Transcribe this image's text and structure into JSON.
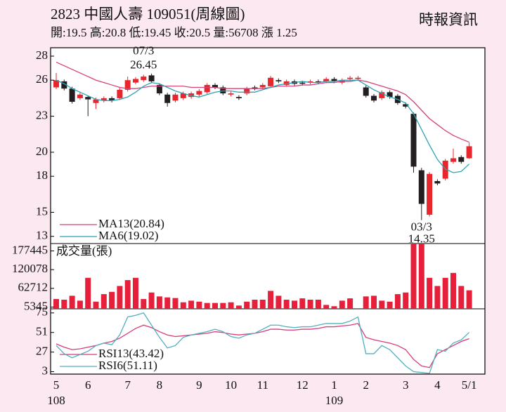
{
  "header": {
    "title": "2823 中國人壽 109051(周線圖)",
    "source": "時報資訊",
    "quote": "開:19.5 高:20.8 低:19.45 收:20.5 量:56708 漲 1.25"
  },
  "chart_data": [
    {
      "type": "candlestick",
      "categories": [
        "5",
        null,
        null,
        null,
        "6",
        null,
        null,
        null,
        null,
        "7",
        null,
        null,
        null,
        "8",
        null,
        null,
        null,
        null,
        "9",
        null,
        null,
        null,
        "10",
        null,
        null,
        null,
        "11",
        null,
        null,
        null,
        null,
        "12",
        null,
        null,
        null,
        "1",
        null,
        null,
        null,
        "2",
        null,
        null,
        null,
        null,
        "3",
        null,
        null,
        null,
        "4",
        null,
        null,
        null,
        "5/1"
      ],
      "category_years": [
        "108",
        null,
        null,
        null,
        null,
        null,
        null,
        null,
        null,
        null,
        null,
        null,
        null,
        null,
        null,
        null,
        null,
        null,
        null,
        null,
        null,
        null,
        null,
        null,
        null,
        null,
        null,
        null,
        null,
        null,
        null,
        null,
        null,
        null,
        null,
        "109",
        null,
        null,
        null,
        null,
        null,
        null,
        null,
        null,
        null,
        null,
        null,
        null,
        null,
        null,
        null,
        null,
        null
      ],
      "open": [
        25.4,
        25.9,
        25.3,
        24.5,
        24.6,
        24.1,
        24.3,
        24.5,
        24.5,
        25.2,
        25.8,
        26.0,
        26.4,
        25.6,
        24.8,
        24.3,
        24.5,
        24.6,
        24.8,
        25.0,
        25.6,
        25.4,
        24.8,
        24.6,
        24.9,
        25.4,
        25.4,
        25.5,
        26.0,
        25.6,
        25.9,
        25.8,
        25.8,
        25.9,
        25.9,
        26.1,
        25.8,
        26.1,
        26.1,
        25.4,
        24.7,
        24.5,
        25.0,
        24.7,
        24.0,
        23.2,
        18.5,
        14.8,
        17.6,
        17.8,
        19.2,
        19.6,
        19.5
      ],
      "high": [
        26.6,
        26.05,
        25.45,
        24.95,
        24.7,
        24.55,
        24.65,
        24.65,
        25.35,
        26.3,
        26.25,
        26.45,
        26.55,
        25.75,
        24.95,
        24.95,
        25.05,
        25.05,
        25.25,
        25.75,
        25.75,
        25.55,
        25.05,
        24.75,
        25.45,
        25.55,
        25.75,
        26.35,
        26.15,
        26.05,
        26.05,
        25.95,
        26.05,
        26.05,
        26.25,
        26.25,
        26.15,
        26.35,
        26.35,
        25.55,
        24.85,
        25.15,
        25.15,
        24.85,
        24.15,
        23.3,
        18.7,
        18.35,
        17.75,
        19.45,
        20.3,
        19.75,
        20.8
      ],
      "low": [
        25.25,
        25.15,
        24.05,
        24.35,
        23.0,
        23.6,
        24.15,
        24.15,
        24.35,
        25.05,
        25.65,
        25.85,
        25.75,
        24.75,
        23.8,
        24.15,
        24.35,
        24.45,
        24.65,
        24.85,
        25.25,
        24.75,
        24.65,
        24.35,
        24.75,
        25.15,
        25.25,
        25.35,
        25.75,
        25.45,
        25.55,
        25.55,
        25.65,
        25.65,
        25.75,
        25.75,
        25.65,
        25.95,
        25.95,
        24.55,
        24.15,
        24.35,
        24.45,
        23.95,
        23.65,
        18.3,
        14.35,
        14.65,
        17.25,
        17.65,
        19.05,
        19.05,
        19.45
      ],
      "close": [
        26.0,
        25.3,
        24.2,
        24.8,
        24.4,
        24.4,
        24.5,
        24.3,
        25.2,
        26.0,
        26.1,
        26.3,
        25.9,
        24.9,
        24.1,
        24.8,
        24.9,
        24.9,
        25.1,
        25.6,
        25.4,
        24.9,
        24.9,
        24.5,
        25.3,
        25.3,
        25.6,
        26.2,
        25.9,
        25.9,
        25.7,
        25.7,
        25.9,
        25.8,
        26.1,
        25.9,
        26.0,
        26.2,
        26.2,
        24.7,
        24.3,
        25.0,
        24.6,
        24.1,
        23.8,
        18.8,
        15.7,
        18.2,
        17.4,
        19.3,
        19.5,
        19.2,
        20.5
      ],
      "up_color": "#e8262d",
      "down_color": "#231f20",
      "series": [
        {
          "name": "MA13(20.84)",
          "color": "#d6417a",
          "values": [
            27.5,
            27.2,
            26.9,
            26.6,
            26.3,
            26.0,
            25.8,
            25.6,
            25.4,
            25.3,
            25.3,
            25.4,
            25.5,
            25.5,
            25.5,
            25.5,
            25.5,
            25.4,
            25.4,
            25.4,
            25.4,
            25.3,
            25.3,
            25.3,
            25.3,
            25.3,
            25.3,
            25.4,
            25.5,
            25.5,
            25.5,
            25.6,
            25.6,
            25.7,
            25.8,
            25.8,
            25.9,
            25.9,
            26.0,
            25.9,
            25.7,
            25.5,
            25.3,
            25.1,
            24.8,
            24.2,
            23.5,
            22.8,
            22.3,
            21.8,
            21.4,
            21.1,
            20.84
          ]
        },
        {
          "name": "MA6(19.02)",
          "color": "#2aa3b3",
          "values": [
            26.0,
            25.7,
            25.3,
            25.0,
            24.7,
            24.4,
            24.3,
            24.3,
            24.4,
            24.6,
            25.0,
            25.5,
            25.8,
            25.7,
            25.4,
            25.1,
            24.9,
            24.7,
            24.6,
            24.8,
            25.0,
            25.1,
            25.1,
            25.0,
            25.0,
            25.0,
            25.2,
            25.4,
            25.6,
            25.7,
            25.8,
            25.9,
            25.8,
            25.8,
            25.9,
            25.9,
            26.0,
            26.0,
            26.0,
            25.6,
            25.2,
            24.9,
            24.6,
            24.4,
            24.1,
            23.2,
            21.9,
            20.6,
            19.4,
            18.6,
            18.3,
            18.4,
            19.02
          ]
        }
      ],
      "annotations": [
        {
          "date": "07/3",
          "value": 26.45,
          "kind": "high"
        },
        {
          "date": "03/3",
          "value": 14.35,
          "kind": "low"
        }
      ],
      "ylim": [
        12.4,
        28.7
      ],
      "yticks": [
        28,
        26,
        23,
        20,
        18,
        15,
        13
      ]
    },
    {
      "type": "bar",
      "title": "成交量(張)",
      "color": "#e6203a",
      "values": [
        30000,
        28000,
        40000,
        25000,
        95000,
        22000,
        45000,
        52000,
        70000,
        88000,
        95000,
        30000,
        50000,
        38000,
        35000,
        33000,
        20000,
        25000,
        22000,
        18000,
        18000,
        18000,
        20000,
        10000,
        22000,
        28000,
        28000,
        55000,
        40000,
        28000,
        25000,
        32000,
        28000,
        28000,
        12000,
        8000,
        25000,
        32000,
        null,
        38000,
        40000,
        25000,
        22000,
        45000,
        50000,
        200000,
        200000,
        95000,
        70000,
        95000,
        110000,
        70000,
        56708
      ],
      "ylim": [
        0,
        200000
      ],
      "yticks": [
        177445,
        120078,
        62712,
        5345
      ]
    },
    {
      "type": "line",
      "series": [
        {
          "name": "RSI13(43.42)",
          "color": "#d93a7a",
          "values": [
            37,
            33,
            30,
            31,
            33,
            35,
            38,
            40,
            44,
            50,
            56,
            60,
            57,
            52,
            48,
            46,
            47,
            48,
            49,
            50,
            52,
            51,
            49,
            48,
            49,
            50,
            52,
            55,
            55,
            54,
            54,
            55,
            55,
            56,
            58,
            58,
            59,
            60,
            62,
            45,
            42,
            40,
            38,
            35,
            30,
            18,
            10,
            8,
            25,
            30,
            35,
            40,
            43.42
          ]
        },
        {
          "name": "RSI6(51.11)",
          "color": "#4fb0c0",
          "values": [
            35,
            25,
            20,
            24,
            28,
            35,
            38,
            36,
            48,
            70,
            72,
            75,
            60,
            45,
            32,
            35,
            45,
            48,
            50,
            52,
            55,
            52,
            46,
            44,
            48,
            50,
            55,
            60,
            60,
            58,
            57,
            58,
            58,
            60,
            62,
            62,
            62,
            65,
            70,
            25,
            25,
            35,
            30,
            20,
            10,
            3,
            2,
            1,
            30,
            28,
            38,
            42,
            51.11
          ]
        }
      ],
      "ylim": [
        0,
        80
      ],
      "yticks": [
        75,
        51,
        27,
        3
      ]
    }
  ]
}
